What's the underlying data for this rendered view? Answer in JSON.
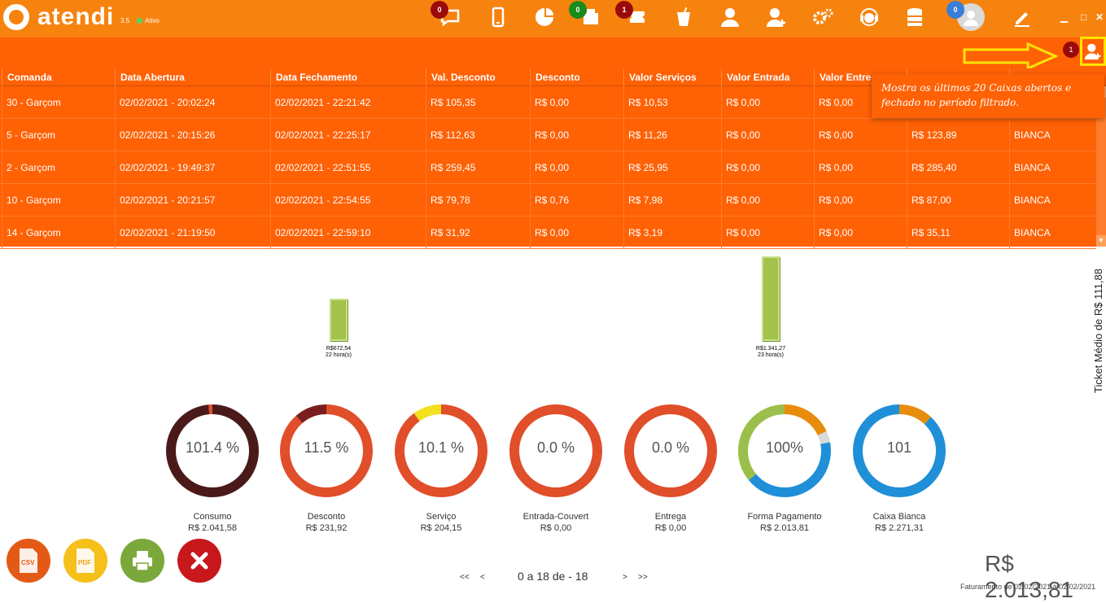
{
  "app": {
    "name": "atendi",
    "version": "3.5",
    "status": "Ativo"
  },
  "topbar": {
    "badges": {
      "chat": "0",
      "orders": "0",
      "tickets": "1",
      "user": "0"
    }
  },
  "subbar": {
    "badge": "1"
  },
  "table": {
    "headers": [
      "Comanda",
      "Data Abertura",
      "Data Fechamento",
      "Val. Desconto",
      "Desconto",
      "Valor Serviços",
      "Valor Entrada",
      "Valor Entrega",
      "",
      ""
    ],
    "rows": [
      [
        "30 - Garçom",
        "02/02/2021 - 20:02:24",
        "02/02/2021 - 22:21:42",
        "R$ 105,35",
        "R$ 0,00",
        "R$ 10,53",
        "R$ 0,00",
        "R$ 0,00",
        "",
        ""
      ],
      [
        "5 - Garçom",
        "02/02/2021 - 20:15:26",
        "02/02/2021 - 22:25:17",
        "R$ 112,63",
        "R$ 0,00",
        "R$ 11,26",
        "R$ 0,00",
        "R$ 0,00",
        "R$ 123,89",
        "BIANCA"
      ],
      [
        "2 - Garçom",
        "02/02/2021 - 19:49:37",
        "02/02/2021 - 22:51:55",
        "R$ 259,45",
        "R$ 0,00",
        "R$ 25,95",
        "R$ 0,00",
        "R$ 0,00",
        "R$ 285,40",
        "BIANCA"
      ],
      [
        "10 - Garçom",
        "02/02/2021 - 20:21:57",
        "02/02/2021 - 22:54:55",
        "R$ 79,78",
        "R$ 0,76",
        "R$ 7,98",
        "R$ 0,00",
        "R$ 0,00",
        "R$ 87,00",
        "BIANCA"
      ],
      [
        "14 - Garçom",
        "02/02/2021 - 21:19:50",
        "02/02/2021 - 22:59:10",
        "R$ 31,92",
        "R$ 0,00",
        "R$ 3,19",
        "R$ 0,00",
        "R$ 0,00",
        "R$ 35,11",
        "BIANCA"
      ]
    ]
  },
  "tooltip": {
    "text": "Mostra os últimos 20 Caixas abertos e fechado no período filtrado."
  },
  "chart_data": {
    "type": "bar",
    "categories": [
      "22 hora(s)",
      "23 hora(s)"
    ],
    "values": [
      672.54,
      1341.27
    ],
    "value_labels": [
      "R$672,54",
      "R$1.341,27"
    ],
    "ylim": [
      0,
      1341.27
    ]
  },
  "ticket": {
    "label": "Ticket Médio de R$ 111,88"
  },
  "donuts": [
    {
      "center": "101.4 %",
      "label": "Consumo",
      "value": "R$ 2.041,58"
    },
    {
      "center": "11.5 %",
      "label": "Desconto",
      "value": "R$ 231,92"
    },
    {
      "center": "10.1 %",
      "label": "Serviço",
      "value": "R$ 204,15"
    },
    {
      "center": "0.0 %",
      "label": "Entrada-Couvert",
      "value": "R$ 0,00"
    },
    {
      "center": "0.0 %",
      "label": "Entrega",
      "value": "R$ 0,00"
    },
    {
      "center": "100%",
      "label": "Forma Pagamento",
      "value": "R$ 2.013,81"
    },
    {
      "center": "101",
      "label": "Caixa Bianca",
      "value": "R$ 2.271,31"
    }
  ],
  "actions": {
    "csv": "CSV",
    "pdf": "PDF"
  },
  "pager": {
    "first": "<<",
    "prev": "<",
    "info": "0 a 18 de - 18",
    "next": ">",
    "last": ">>"
  },
  "footer": {
    "total": "R$ 2.013,81",
    "faturamento": "Faturamento de 02/02/2021 à 02/02/2021"
  },
  "colors": {
    "topbar": "#f7830f",
    "table": "#ff6105",
    "bar": "#a3c24a"
  }
}
